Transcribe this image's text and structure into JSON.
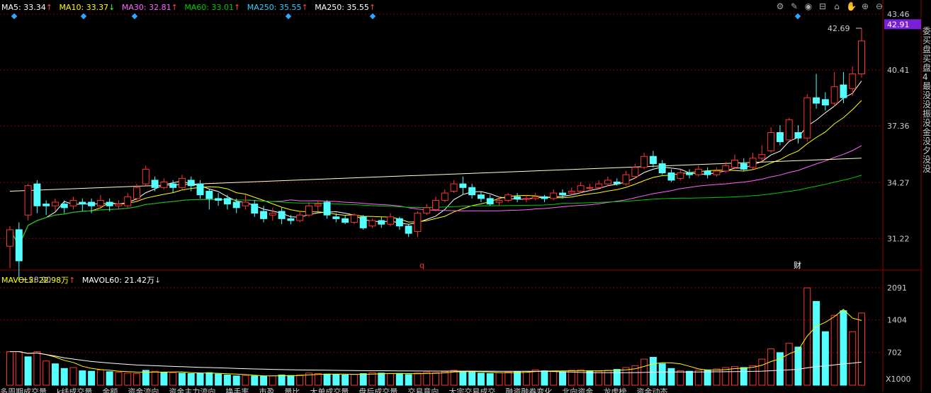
{
  "legend_top": [
    {
      "label": "MA5: 33.34",
      "arrow": "↑",
      "color": "#ffffff"
    },
    {
      "label": "MA10: 33.37",
      "arrow": "↓",
      "color": "#ffff00"
    },
    {
      "label": "MA30: 32.81",
      "arrow": "↑",
      "color": "#ff66ff"
    },
    {
      "label": "MA60: 33.01",
      "arrow": "↑",
      "color": "#00cc00"
    },
    {
      "label": "MA250: 35.55",
      "arrow": "↑",
      "color": "#33ccff"
    },
    {
      "label": "MA250: 35.55",
      "arrow": "↑",
      "color": "#ffffff"
    }
  ],
  "legend_vol": [
    {
      "label": "MAVOL5: 22.98万",
      "arrow": "↑",
      "color": "#ffff00"
    },
    {
      "label": "MAVOL60: 21.42万",
      "arrow": "↓",
      "color": "#ffffff"
    }
  ],
  "toolbar_icons": [
    "settings-icon",
    "draw-icon",
    "eye-icon",
    "basket-icon",
    "lock-icon",
    "hand-icon",
    "zoom-in-icon",
    "zoom-out-icon"
  ],
  "price_ticks": [
    "43.46",
    "40.41",
    "37.36",
    "34.27",
    "31.22"
  ],
  "current_price": "42.91",
  "vol_ticks": [
    "2091",
    "1404",
    "702"
  ],
  "vol_unit": "X1000",
  "markers": [
    {
      "text": "q",
      "color": "#ff3333"
    },
    {
      "text": "财",
      "color": "#ffffff"
    }
  ],
  "right_panel": "委买盘买盘4最没没振没金没夕没没",
  "tabs": [
    "多周期成交量",
    "k线成交量",
    "金额",
    "资金流向",
    "资金主力流向",
    "换手率",
    "市盈",
    "量比",
    "大单成交量",
    "盘后成交量",
    "交易意向",
    "大宗交易成交",
    "融资融券变化",
    "北向资金",
    "龙虎榜",
    "资金动态"
  ],
  "chart_data": {
    "type": "candlestick",
    "high_label": "42.69",
    "low_label": "28.90",
    "ylim": [
      29.5,
      43.46
    ],
    "vol_ylim": [
      0,
      2200
    ],
    "candles": [
      [
        30.8,
        31.7,
        29.6,
        31.9
      ],
      [
        31.7,
        30.0,
        28.9,
        32.1
      ],
      [
        32.5,
        34.1,
        32.2,
        34.2
      ],
      [
        34.2,
        33.0,
        32.6,
        34.4
      ],
      [
        33.1,
        33.0,
        32.5,
        33.3
      ],
      [
        33.0,
        33.2,
        32.7,
        33.4
      ],
      [
        33.1,
        32.9,
        32.6,
        33.3
      ],
      [
        33.0,
        33.3,
        32.8,
        33.5
      ],
      [
        33.2,
        33.1,
        32.7,
        33.4
      ],
      [
        33.2,
        33.0,
        32.6,
        33.4
      ],
      [
        33.0,
        33.3,
        32.9,
        33.6
      ],
      [
        33.2,
        33.0,
        32.7,
        33.4
      ],
      [
        33.0,
        33.1,
        32.8,
        33.3
      ],
      [
        33.0,
        33.5,
        32.9,
        33.7
      ],
      [
        33.4,
        34.0,
        33.3,
        34.2
      ],
      [
        34.2,
        35.0,
        34.1,
        35.2
      ],
      [
        34.4,
        34.0,
        33.8,
        34.6
      ],
      [
        34.0,
        34.3,
        33.9,
        34.5
      ],
      [
        34.2,
        34.0,
        33.7,
        34.4
      ],
      [
        34.0,
        34.5,
        33.9,
        34.7
      ],
      [
        34.4,
        34.1,
        33.8,
        34.6
      ],
      [
        34.2,
        33.6,
        33.4,
        34.4
      ],
      [
        33.8,
        33.4,
        32.8,
        33.9
      ],
      [
        33.4,
        33.3,
        33.0,
        33.7
      ],
      [
        33.4,
        33.1,
        32.8,
        33.6
      ],
      [
        33.2,
        32.9,
        32.6,
        33.4
      ],
      [
        33.0,
        33.2,
        32.8,
        33.6
      ],
      [
        33.1,
        32.6,
        32.4,
        33.3
      ],
      [
        32.7,
        32.3,
        32.1,
        33.0
      ],
      [
        32.5,
        32.6,
        32.2,
        32.9
      ],
      [
        32.7,
        32.3,
        32.0,
        32.9
      ],
      [
        32.3,
        32.2,
        32.0,
        32.5
      ],
      [
        32.2,
        32.5,
        32.1,
        32.7
      ],
      [
        32.5,
        33.0,
        32.4,
        33.2
      ],
      [
        33.0,
        33.1,
        32.7,
        33.3
      ],
      [
        33.2,
        32.5,
        32.3,
        33.3
      ],
      [
        32.4,
        32.3,
        32.1,
        32.6
      ],
      [
        32.3,
        32.1,
        32.0,
        32.5
      ],
      [
        32.1,
        32.5,
        32.0,
        32.6
      ],
      [
        32.4,
        31.8,
        31.7,
        32.5
      ],
      [
        31.9,
        32.2,
        31.8,
        32.3
      ],
      [
        32.2,
        32.0,
        31.8,
        32.4
      ],
      [
        32.0,
        32.4,
        31.9,
        32.6
      ],
      [
        32.3,
        31.9,
        31.7,
        32.4
      ],
      [
        31.9,
        31.5,
        31.3,
        32.0
      ],
      [
        31.6,
        32.6,
        31.3,
        32.7
      ],
      [
        32.6,
        32.9,
        32.5,
        33.1
      ],
      [
        32.8,
        33.3,
        32.7,
        33.5
      ],
      [
        33.3,
        33.7,
        33.2,
        33.9
      ],
      [
        33.8,
        34.2,
        33.7,
        34.4
      ],
      [
        34.2,
        34.0,
        33.6,
        34.6
      ],
      [
        34.0,
        33.6,
        33.4,
        34.2
      ],
      [
        33.6,
        33.4,
        33.2,
        33.8
      ],
      [
        33.4,
        33.1,
        33.0,
        33.6
      ],
      [
        33.2,
        33.3,
        33.0,
        33.5
      ],
      [
        33.3,
        33.6,
        33.2,
        33.7
      ],
      [
        33.5,
        33.4,
        33.2,
        33.7
      ],
      [
        33.4,
        33.4,
        33.2,
        33.6
      ],
      [
        33.4,
        33.5,
        33.3,
        33.7
      ],
      [
        33.5,
        33.4,
        33.2,
        33.6
      ],
      [
        33.4,
        33.7,
        33.3,
        33.9
      ],
      [
        33.7,
        33.6,
        33.4,
        33.9
      ],
      [
        33.7,
        33.8,
        33.6,
        34.0
      ],
      [
        33.8,
        34.1,
        33.7,
        34.3
      ],
      [
        34.0,
        34.0,
        33.8,
        34.2
      ],
      [
        34.0,
        34.2,
        33.9,
        34.4
      ],
      [
        34.2,
        34.4,
        34.1,
        34.6
      ],
      [
        34.3,
        34.2,
        34.1,
        34.5
      ],
      [
        34.2,
        34.7,
        34.1,
        34.9
      ],
      [
        34.6,
        35.1,
        34.5,
        35.3
      ],
      [
        35.1,
        35.7,
        35.0,
        35.9
      ],
      [
        35.7,
        35.3,
        35.1,
        36.0
      ],
      [
        35.3,
        34.8,
        34.7,
        35.5
      ],
      [
        34.8,
        34.4,
        34.3,
        35.0
      ],
      [
        34.5,
        34.8,
        34.4,
        35.0
      ],
      [
        34.8,
        34.7,
        34.5,
        35.0
      ],
      [
        34.7,
        35.0,
        34.6,
        35.2
      ],
      [
        34.9,
        34.7,
        34.5,
        35.1
      ],
      [
        34.7,
        34.9,
        34.6,
        35.1
      ],
      [
        34.9,
        35.2,
        34.8,
        35.4
      ],
      [
        35.1,
        35.5,
        35.0,
        35.8
      ],
      [
        35.3,
        35.0,
        34.9,
        35.6
      ],
      [
        35.1,
        35.6,
        35.0,
        35.9
      ],
      [
        35.6,
        35.8,
        35.4,
        36.3
      ],
      [
        36.0,
        37.0,
        35.9,
        37.3
      ],
      [
        37.0,
        36.5,
        36.3,
        37.4
      ],
      [
        36.6,
        37.7,
        36.6,
        37.8
      ],
      [
        37.0,
        36.7,
        36.4,
        37.4
      ],
      [
        36.7,
        38.9,
        36.5,
        39.1
      ],
      [
        38.9,
        38.6,
        38.3,
        40.2
      ],
      [
        38.8,
        38.5,
        38.2,
        39.2
      ],
      [
        38.6,
        39.5,
        38.4,
        40.3
      ],
      [
        39.6,
        38.9,
        38.6,
        40.3
      ],
      [
        39.4,
        40.2,
        39.0,
        40.6
      ],
      [
        40.2,
        42.0,
        40.0,
        42.69
      ]
    ],
    "volumes": [
      720,
      720,
      610,
      720,
      520,
      460,
      360,
      380,
      310,
      300,
      330,
      290,
      280,
      260,
      250,
      320,
      300,
      280,
      270,
      260,
      250,
      260,
      270,
      240,
      220,
      200,
      210,
      200,
      190,
      200,
      220,
      210,
      220,
      260,
      250,
      240,
      230,
      220,
      230,
      250,
      270,
      260,
      250,
      240,
      230,
      260,
      280,
      270,
      290,
      320,
      300,
      280,
      260,
      250,
      270,
      280,
      290,
      300,
      330,
      310,
      300,
      290,
      320,
      330,
      310,
      300,
      320,
      340,
      380,
      420,
      560,
      600,
      460,
      360,
      310,
      300,
      320,
      330,
      350,
      380,
      400,
      380,
      420,
      560,
      780,
      700,
      900,
      820,
      2091,
      1800,
      1150,
      1500,
      1600,
      1150,
      1550
    ],
    "vol_colors": [
      "up",
      "up",
      "dn",
      "up",
      "up",
      "dn",
      "dn",
      "up",
      "dn",
      "dn",
      "up",
      "dn",
      "up",
      "up",
      "up",
      "dn",
      "up",
      "dn",
      "up",
      "dn",
      "dn",
      "dn",
      "dn",
      "dn",
      "dn",
      "dn",
      "up",
      "dn",
      "dn",
      "up",
      "dn",
      "dn",
      "up",
      "up",
      "up",
      "dn",
      "dn",
      "dn",
      "up",
      "dn",
      "up",
      "dn",
      "up",
      "dn",
      "dn",
      "up",
      "up",
      "up",
      "up",
      "up",
      "dn",
      "dn",
      "dn",
      "dn",
      "up",
      "up",
      "dn",
      "up",
      "up",
      "dn",
      "up",
      "dn",
      "up",
      "up",
      "dn",
      "up",
      "up",
      "dn",
      "up",
      "up",
      "up",
      "dn",
      "dn",
      "dn",
      "up",
      "dn",
      "up",
      "dn",
      "up",
      "up",
      "up",
      "dn",
      "up",
      "up",
      "up",
      "dn",
      "up",
      "dn",
      "up",
      "dn",
      "dn",
      "up",
      "dn",
      "up",
      "up"
    ]
  }
}
